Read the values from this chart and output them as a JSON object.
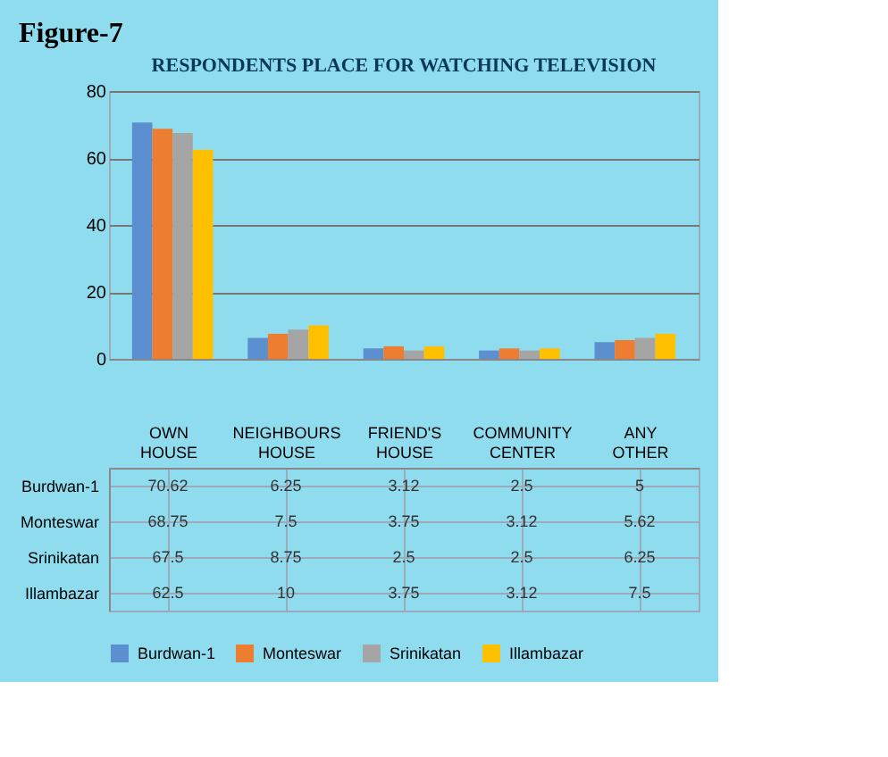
{
  "chart_data": {
    "type": "bar",
    "title": "RESPONDENTS PLACE FOR WATCHING TELEVISION",
    "annotations": [
      "Figure-7"
    ],
    "categories": [
      "OWN HOUSE",
      "NEIGHBOURS HOUSE",
      "FRIEND'S HOUSE",
      "COMMUNITY CENTER",
      "ANY OTHER"
    ],
    "series": [
      {
        "name": "Burdwan-1",
        "color": "#5b8fd0",
        "values": [
          70.62,
          6.25,
          3.12,
          2.5,
          5
        ]
      },
      {
        "name": "Monteswar",
        "color": "#ed7d31",
        "values": [
          68.75,
          7.5,
          3.75,
          3.12,
          5.62
        ]
      },
      {
        "name": "Srinikatan",
        "color": "#a5a5a5",
        "values": [
          67.5,
          8.75,
          2.5,
          2.5,
          6.25
        ]
      },
      {
        "name": "Illambazar",
        "color": "#ffc000",
        "values": [
          62.5,
          10,
          3.75,
          3.12,
          7.5
        ]
      }
    ],
    "ylim": [
      0,
      80
    ],
    "yticks": [
      0,
      20,
      40,
      60,
      80
    ],
    "grid": "y",
    "legend": "bottom",
    "data_labels": true
  }
}
